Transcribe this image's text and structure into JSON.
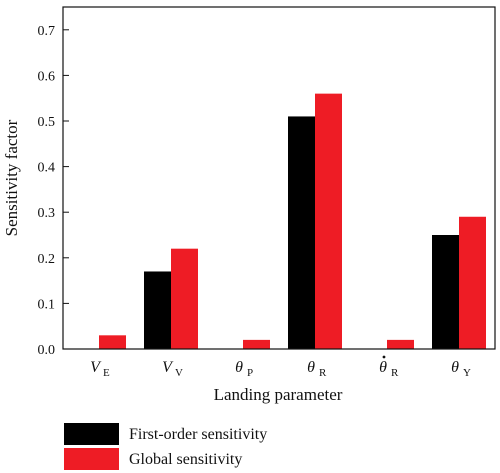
{
  "chart_data": {
    "type": "bar",
    "xlabel": "Landing parameter",
    "ylabel": "Sensitivity factor",
    "ylim": [
      0,
      0.75
    ],
    "yticks": [
      "0.0",
      "0.1",
      "0.2",
      "0.3",
      "0.4",
      "0.5",
      "0.6",
      "0.7"
    ],
    "categories": [
      {
        "sym": "V",
        "sub": "E",
        "dot": false
      },
      {
        "sym": "V",
        "sub": "V",
        "dot": false
      },
      {
        "sym": "θ",
        "sub": "P",
        "dot": false
      },
      {
        "sym": "θ",
        "sub": "R",
        "dot": false
      },
      {
        "sym": "θ",
        "sub": "R",
        "dot": true
      },
      {
        "sym": "θ",
        "sub": "Y",
        "dot": false
      }
    ],
    "series": [
      {
        "name": "First-order sensitivity",
        "color": "#000000",
        "values": [
          0.0,
          0.17,
          0.0,
          0.51,
          0.0,
          0.25
        ]
      },
      {
        "name": "Global sensitivity",
        "color": "#ee1c25",
        "values": [
          0.03,
          0.22,
          0.02,
          0.56,
          0.02,
          0.29
        ]
      }
    ],
    "grid": false,
    "legend_position": "bottom-center"
  }
}
